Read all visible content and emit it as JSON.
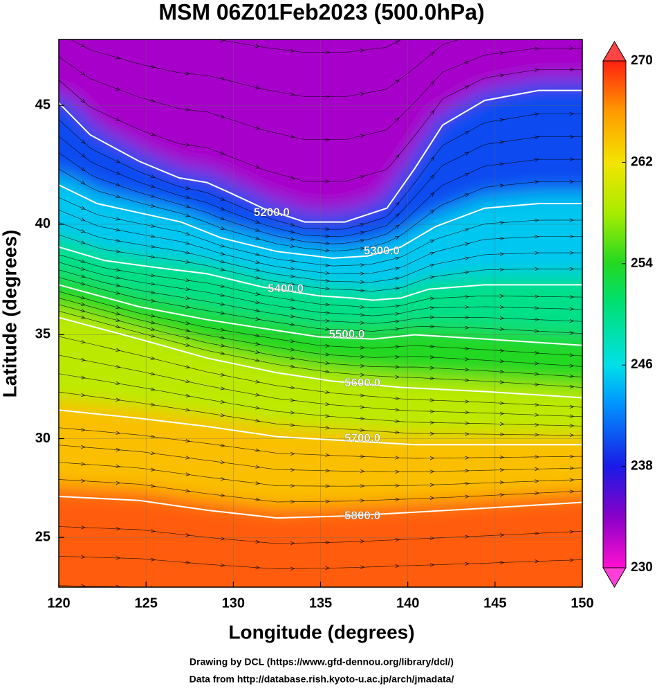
{
  "chart_data": {
    "type": "contour-map",
    "title": "MSM 06Z01Feb2023 (500.0hPa)",
    "xlabel": "Longitude (degrees)",
    "ylabel": "Latitude  (degrees)",
    "projection": "mercator",
    "xlim": [
      120,
      150
    ],
    "ylim": [
      22.4,
      47.6
    ],
    "xticks": [
      120,
      125,
      130,
      135,
      140,
      145,
      150
    ],
    "yticks": [
      25,
      30,
      35,
      40,
      45
    ],
    "grid": true,
    "contours": [
      {
        "level": {
          "value": 5200,
          "label": "5200.0"
        },
        "lon": [
          120,
          121.8,
          124.6,
          126.9,
          128.5,
          129.7,
          131.7,
          134.1,
          136.4,
          138.8,
          140.4,
          142.0,
          144.4,
          147.5,
          150
        ],
        "lat": [
          45.1,
          43.8,
          42.7,
          42.0,
          41.8,
          41.4,
          40.7,
          40.1,
          40.1,
          40.7,
          42.4,
          44.2,
          45.2,
          45.6,
          45.6
        ],
        "label_lon": 132.2,
        "label_lat": 40.5
      },
      {
        "level": {
          "value": 5300,
          "label": "5300.0"
        },
        "lon": [
          120,
          122.2,
          124.6,
          127.0,
          129.3,
          132.5,
          135.7,
          137.7,
          139.6,
          141.6,
          144.4,
          147.5,
          150
        ],
        "lat": [
          41.7,
          40.9,
          40.5,
          40.1,
          39.4,
          38.8,
          38.5,
          38.6,
          39.0,
          39.9,
          40.7,
          40.9,
          40.9
        ],
        "label_lon": 138.5,
        "label_lat": 38.8
      },
      {
        "level": {
          "value": 5400,
          "label": "5400.0"
        },
        "lon": [
          120,
          122.6,
          125.4,
          128.5,
          131.7,
          134.9,
          136.8,
          138.0,
          139.6,
          141.2,
          144.4,
          147.5,
          150
        ],
        "lat": [
          39.0,
          38.4,
          38.1,
          37.8,
          37.2,
          36.8,
          36.7,
          36.6,
          36.7,
          37.1,
          37.3,
          37.3,
          37.3
        ],
        "label_lon": 133.0,
        "label_lat": 37.1
      },
      {
        "level": {
          "value": 5500,
          "label": "5500.0"
        },
        "lon": [
          120,
          124.6,
          128.5,
          132.5,
          134.9,
          138.0,
          140.4,
          144.4,
          150
        ],
        "lat": [
          37.3,
          36.3,
          35.7,
          35.2,
          34.9,
          34.8,
          35.0,
          34.8,
          34.5
        ],
        "label_lon": 136.5,
        "label_lat": 35.0
      },
      {
        "level": {
          "value": 5600,
          "label": "5600.0"
        },
        "lon": [
          120,
          124.6,
          128.5,
          132.5,
          135.7,
          139.6,
          144.4,
          150
        ],
        "lat": [
          35.8,
          34.8,
          33.9,
          33.2,
          32.8,
          32.5,
          32.3,
          32.0
        ],
        "label_lon": 137.4,
        "label_lat": 32.7
      },
      {
        "level": {
          "value": 5700,
          "label": "5700.0"
        },
        "lon": [
          120,
          124.6,
          128.5,
          132.5,
          136.4,
          140.4,
          144.4,
          150
        ],
        "lat": [
          31.4,
          31.0,
          30.6,
          30.1,
          29.9,
          29.7,
          29.7,
          29.7
        ],
        "label_lon": 137.4,
        "label_lat": 30.0
      },
      {
        "level": {
          "value": 5800,
          "label": "5800.0"
        },
        "lon": [
          120,
          124.6,
          128.5,
          132.5,
          136.4,
          140.4,
          144.4,
          150
        ],
        "lat": [
          27.1,
          26.9,
          26.4,
          26.0,
          26.1,
          26.3,
          26.5,
          26.8
        ],
        "label_lon": 137.4,
        "label_lat": 26.1
      }
    ],
    "band_temperatures": [
      233,
      240,
      245,
      250,
      254,
      259,
      264,
      268
    ],
    "clim": [
      230,
      270
    ],
    "cticks": [
      230,
      238,
      246,
      254,
      262,
      270
    ],
    "colormap": [
      {
        "value": 230,
        "color": "#ff10d0"
      },
      {
        "value": 234,
        "color": "#8a00c8"
      },
      {
        "value": 238,
        "color": "#1a1ae6"
      },
      {
        "value": 243,
        "color": "#0096ff"
      },
      {
        "value": 246,
        "color": "#00e0e8"
      },
      {
        "value": 251,
        "color": "#00e070"
      },
      {
        "value": 254,
        "color": "#22d822"
      },
      {
        "value": 258,
        "color": "#a8ec00"
      },
      {
        "value": 262,
        "color": "#f4e400"
      },
      {
        "value": 266,
        "color": "#ff9a00"
      },
      {
        "value": 270,
        "color": "#ff2010"
      }
    ],
    "credits": [
      "Drawing by DCL (https://www.gfd-dennou.org/library/dcl/)",
      "Data from http://database.rish.kyoto-u.ac.jp/arch/jmadata/"
    ]
  }
}
